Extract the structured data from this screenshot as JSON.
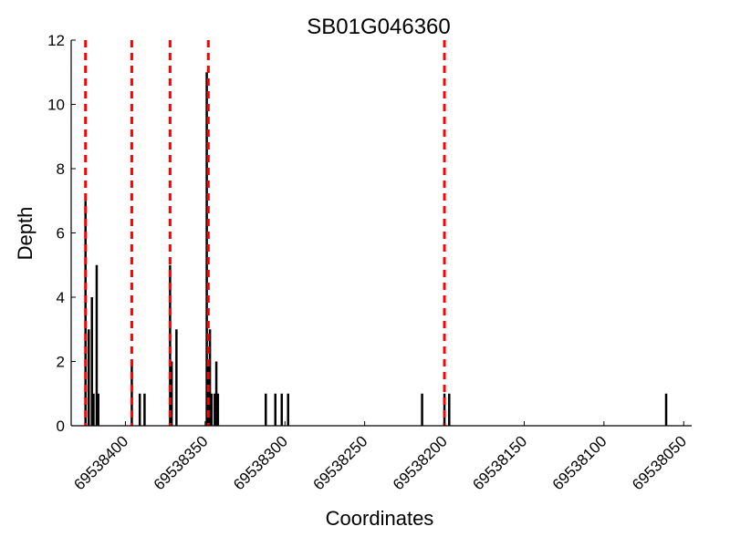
{
  "chart_data": {
    "type": "bar",
    "title": "SB01G046360",
    "xlabel": "Coordinates",
    "ylabel": "Depth",
    "xlim": [
      69538434,
      69538045
    ],
    "ylim": [
      0,
      12
    ],
    "x_reversed": true,
    "x_ticks": [
      69538400,
      69538350,
      69538300,
      69538250,
      69538200,
      69538150,
      69538100,
      69538050
    ],
    "y_ticks": [
      0,
      2,
      4,
      6,
      8,
      10,
      12
    ],
    "grid": false,
    "series": [
      {
        "color": "#000000",
        "points": [
          {
            "x": 69538425,
            "y": 7
          },
          {
            "x": 69538423,
            "y": 3
          },
          {
            "x": 69538421,
            "y": 4
          },
          {
            "x": 69538420,
            "y": 1
          },
          {
            "x": 69538418,
            "y": 5
          },
          {
            "x": 69538417,
            "y": 1
          },
          {
            "x": 69538396,
            "y": 2
          },
          {
            "x": 69538391,
            "y": 1
          },
          {
            "x": 69538388,
            "y": 1
          },
          {
            "x": 69538372,
            "y": 5
          },
          {
            "x": 69538371,
            "y": 2
          },
          {
            "x": 69538368,
            "y": 3
          },
          {
            "x": 69538349,
            "y": 11
          },
          {
            "x": 69538348,
            "y": 2
          },
          {
            "x": 69538347,
            "y": 3
          },
          {
            "x": 69538346,
            "y": 1
          },
          {
            "x": 69538344,
            "y": 1
          },
          {
            "x": 69538343,
            "y": 2
          },
          {
            "x": 69538342,
            "y": 1
          },
          {
            "x": 69538312,
            "y": 1
          },
          {
            "x": 69538306,
            "y": 1
          },
          {
            "x": 69538302,
            "y": 1
          },
          {
            "x": 69538298,
            "y": 1
          },
          {
            "x": 69538214,
            "y": 1
          },
          {
            "x": 69538200,
            "y": 1
          },
          {
            "x": 69538197,
            "y": 1
          },
          {
            "x": 69538061,
            "y": 1
          }
        ]
      }
    ],
    "vlines": [
      {
        "x": 69538425,
        "color": "#ff0000",
        "style": "dashed"
      },
      {
        "x": 69538396,
        "color": "#ff0000",
        "style": "dashed"
      },
      {
        "x": 69538372,
        "color": "#ff0000",
        "style": "dashed"
      },
      {
        "x": 69538348,
        "color": "#ff0000",
        "style": "dashed"
      },
      {
        "x": 69538200,
        "color": "#ff0000",
        "style": "dashed"
      }
    ]
  }
}
